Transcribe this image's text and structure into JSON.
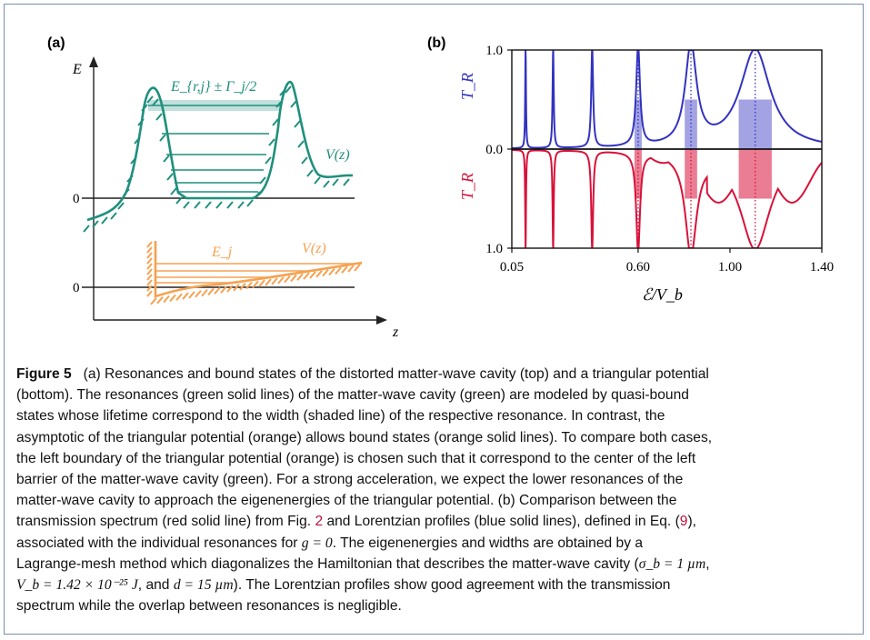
{
  "panel_a": {
    "label": "(a)",
    "axis_e": "E",
    "axis_z": "z",
    "zero_top": "0",
    "zero_bottom": "0",
    "cavity_level_label": "E_{r,j} ± Γ_j/2",
    "cavity_potential_label": "V(z)",
    "triangle_level_label": "E_j",
    "triangle_potential_label": "V(z)",
    "colors": {
      "cavity": "#1f8f7d",
      "triangle": "#f6a150",
      "axis": "#222222"
    }
  },
  "panel_b": {
    "label": "(b)",
    "top_ylabel": "T_R",
    "bottom_ylabel": "T_R",
    "xlabel": "ℰ/V_b",
    "colors": {
      "lorentzian": "#3232c0",
      "transmission": "#d8123a"
    }
  },
  "chart_data": {
    "type": "line",
    "x_ticks": [
      "0.05",
      "0.60",
      "1.00",
      "1.40"
    ],
    "x_tick_values": [
      0.05,
      0.6,
      1.0,
      1.4
    ],
    "xlim": [
      0.05,
      1.4
    ],
    "top_y_ticks": [
      "1.0",
      "0.0"
    ],
    "bottom_y_ticks": [
      "0.0",
      "1.0"
    ],
    "ylim": [
      0,
      1
    ],
    "resonances": [
      {
        "x": 0.11,
        "width": 0.002
      },
      {
        "x": 0.23,
        "width": 0.003
      },
      {
        "x": 0.4,
        "width": 0.005
      },
      {
        "x": 0.6,
        "width": 0.01
      },
      {
        "x": 0.83,
        "width": 0.03
      },
      {
        "x": 1.11,
        "width": 0.08
      }
    ],
    "series": [
      {
        "color": "#3232c0"
      },
      {
        "color": "#d8123a"
      }
    ]
  },
  "caption": {
    "figure_label": "Figure 5",
    "line1": "(a) Resonances and bound states of the distorted matter-wave cavity (top) and a triangular potential",
    "line2": "(bottom). The resonances (green solid lines) of the matter-wave cavity (green) are modeled by quasi-bound",
    "line3": "states whose lifetime correspond to the width (shaded line) of the respective resonance. In contrast, the",
    "line4": "asymptotic of the triangular potential (orange) allows bound states (orange solid lines). To compare both cases,",
    "line5": "the left boundary of the triangular potential (orange) is chosen such that it correspond to the center of the left",
    "line6": "barrier of the matter-wave cavity (green). For a strong acceleration, we expect the lower resonances of the",
    "line7": "matter-wave cavity to approach the eigenenergies of the triangular potential. (b) Comparison between the",
    "line8_a": "transmission spectrum (red solid line) from Fig. ",
    "line8_ref1": "2",
    "line8_b": " and Lorentzian profiles (blue solid lines), defined in Eq. (",
    "line8_ref2": "9",
    "line8_c": "),",
    "line9_a": "associated with the individual resonances for ",
    "line9_math": "g = 0",
    "line9_b": ". The eigenenergies and widths are obtained by a",
    "line10_a": "Lagrange-mesh method which diagonalizes the Hamiltonian that describes the matter-wave cavity (",
    "line10_math": "σ_b = 1 µm",
    "line10_b": ",",
    "line11_math1": "V_b = 1.42 × 10⁻²⁵ J",
    "line11_a": ", and ",
    "line11_math2": "d = 15 µm",
    "line11_b": "). The Lorentzian profiles show good agreement with the transmission",
    "line12": "spectrum while the overlap between resonances is negligible."
  }
}
